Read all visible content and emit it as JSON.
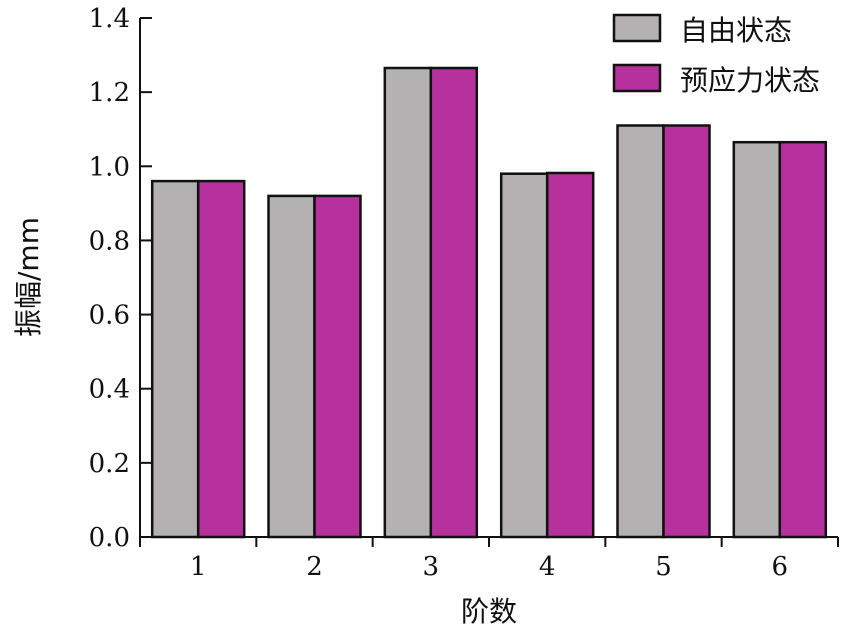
{
  "chart_data": {
    "type": "bar",
    "title": "",
    "xlabel": "阶数",
    "ylabel": "振幅/mm",
    "categories": [
      "1",
      "2",
      "3",
      "4",
      "5",
      "6"
    ],
    "ylim": [
      0,
      1.4
    ],
    "yticks": [
      "0.0",
      "0.2",
      "0.4",
      "0.6",
      "0.8",
      "1.0",
      "1.2",
      "1.4"
    ],
    "grid": false,
    "legend_position": "top-right",
    "series": [
      {
        "name": "自由状态",
        "color": "#b3b1b2",
        "values": [
          0.96,
          0.92,
          1.265,
          0.98,
          1.11,
          1.065
        ]
      },
      {
        "name": "预应力状态",
        "color": "#b6319e",
        "values": [
          0.96,
          0.92,
          1.265,
          0.982,
          1.11,
          1.065
        ]
      }
    ]
  }
}
